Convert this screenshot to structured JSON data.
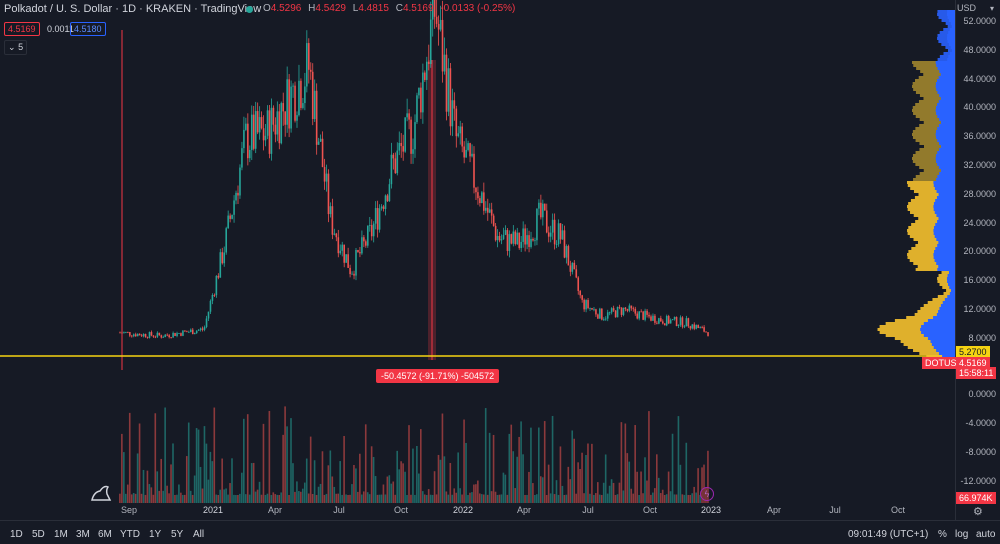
{
  "header": {
    "title": "Polkadot / U. S. Dollar · 1D · KRAKEN · TradingView",
    "ohlc": [
      {
        "k": "O",
        "v": "4.5296"
      },
      {
        "k": "H",
        "v": "4.5429"
      },
      {
        "k": "L",
        "v": "4.4815"
      },
      {
        "k": "C",
        "v": "4.5169"
      },
      {
        "k": "",
        "v": "-0.0133 (-0.25%)"
      }
    ],
    "bid": "4.5169",
    "spread": "0.0011",
    "ask": "4.5180",
    "indicator_count": "5"
  },
  "price_axis": {
    "currency": "USD",
    "ticks": [
      "52.0000",
      "48.0000",
      "44.0000",
      "40.0000",
      "36.0000",
      "32.0000",
      "28.0000",
      "24.0000",
      "20.0000",
      "16.0000",
      "12.0000",
      "8.0000"
    ],
    "level_label": "5.2700",
    "symbol_tag": "DOTUSD",
    "last_price": "4.5169",
    "countdown": "15:58:11"
  },
  "volume_axis": {
    "ticks": [
      "0.0000",
      "-4.0000",
      "-8.0000",
      "-12.0000"
    ],
    "last_volume": "66.974K"
  },
  "measure_label": "-50.4572 (-91.71%) -504572",
  "time_axis": [
    "Sep",
    "2021",
    "Apr",
    "Jul",
    "Oct",
    "2022",
    "Apr",
    "Jul",
    "Oct",
    "2023",
    "Apr",
    "Jul",
    "Oct"
  ],
  "bottom": {
    "ranges": [
      "1D",
      "5D",
      "1M",
      "3M",
      "6M",
      "YTD",
      "1Y",
      "5Y",
      "All"
    ],
    "clock": "09:01:49 (UTC+1)",
    "percent": "%",
    "log": "log",
    "auto": "auto"
  },
  "chart_data": {
    "type": "line",
    "title": "Polkadot / U. S. Dollar · 1D · KRAKEN",
    "approx_daily_close": [
      {
        "x": "2020-08",
        "y": 4.5
      },
      {
        "x": "2020-09",
        "y": 4.2
      },
      {
        "x": "2020-10",
        "y": 4.0
      },
      {
        "x": "2020-11",
        "y": 4.5
      },
      {
        "x": "2020-12",
        "y": 5.0
      },
      {
        "x": "2021-01",
        "y": 18
      },
      {
        "x": "2021-02",
        "y": 34
      },
      {
        "x": "2021-03",
        "y": 35
      },
      {
        "x": "2021-04",
        "y": 40
      },
      {
        "x": "2021-05",
        "y": 45
      },
      {
        "x": "2021-06",
        "y": 22
      },
      {
        "x": "2021-07",
        "y": 14
      },
      {
        "x": "2021-08",
        "y": 20
      },
      {
        "x": "2021-09",
        "y": 30
      },
      {
        "x": "2021-10",
        "y": 36
      },
      {
        "x": "2021-11",
        "y": 54
      },
      {
        "x": "2021-12",
        "y": 34
      },
      {
        "x": "2022-01",
        "y": 27
      },
      {
        "x": "2022-02",
        "y": 19
      },
      {
        "x": "2022-03",
        "y": 18
      },
      {
        "x": "2022-04",
        "y": 22
      },
      {
        "x": "2022-05",
        "y": 19
      },
      {
        "x": "2022-06",
        "y": 9
      },
      {
        "x": "2022-07",
        "y": 7
      },
      {
        "x": "2022-08",
        "y": 8
      },
      {
        "x": "2022-09",
        "y": 7
      },
      {
        "x": "2022-10",
        "y": 6.3
      },
      {
        "x": "2022-11",
        "y": 6
      },
      {
        "x": "2022-12",
        "y": 4.5
      }
    ],
    "ylim": [
      0,
      54
    ]
  }
}
